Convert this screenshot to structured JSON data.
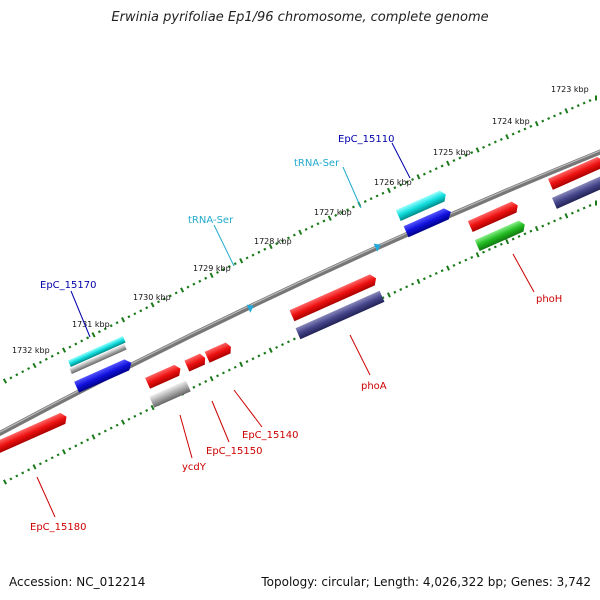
{
  "title": "Erwinia pyrifoliae Ep1/96 chromosome, complete genome",
  "footer": {
    "accession": "Accession: NC_012214",
    "stats": "Topology: circular; Length: 4,026,322 bp; Genes: 3,742"
  },
  "colors": {
    "backbone": "#777777",
    "tick": "#1a7a1a",
    "red_gene": "#ee1111",
    "blue_gene": "#1111dd",
    "navy_gene": "#44448a",
    "cyan_gene": "#11dddd",
    "grey_gene": "#aaaaaa",
    "green_gene": "#22bb22",
    "trna": "#22aadd",
    "label_red": "#cc0000",
    "label_blue": "#0000aa",
    "label_cyan": "#22aacc"
  },
  "kbp_ticks": [
    "1723 kbp",
    "1724 kbp",
    "1725 kbp",
    "1726 kbp",
    "1727 kbp",
    "1728 kbp",
    "1729 kbp",
    "1730 kbp",
    "1731 kbp",
    "1732 kbp"
  ],
  "gene_labels": {
    "EpC_15110": "EpC_15110",
    "tRNA_Ser_1": "tRNA-Ser",
    "tRNA_Ser_2": "tRNA-Ser",
    "EpC_15170": "EpC_15170",
    "phoH": "phoH",
    "phoA": "phoA",
    "EpC_15140": "EpC_15140",
    "EpC_15150": "EpC_15150",
    "ycdY": "ycdY",
    "EpC_15180": "EpC_15180"
  }
}
